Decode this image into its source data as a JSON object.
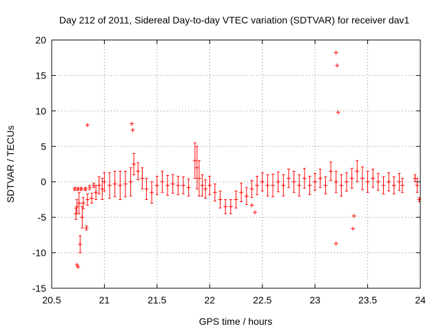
{
  "chart_data": {
    "type": "scatter",
    "title": "Day 212 of 2011, Sidereal Day-to-day VTEC variation (SDTVAR) for receiver dav1",
    "xlabel": "GPS time / hours",
    "ylabel": "SDTVAR / TECUs",
    "xlim": [
      20.5,
      24
    ],
    "ylim": [
      -15,
      20
    ],
    "xticks": [
      20.5,
      21,
      21.5,
      22,
      22.5,
      23,
      23.5,
      24
    ],
    "xtick_labels": [
      "20.5",
      "21",
      "21.5",
      "22",
      "22.5",
      "23",
      "23.5",
      "24"
    ],
    "yticks": [
      -15,
      -10,
      -5,
      0,
      5,
      10,
      15,
      20
    ],
    "ytick_labels": [
      "-15",
      "-10",
      "-5",
      "0",
      "5",
      "10",
      "15",
      "20"
    ],
    "grid": true,
    "marker_color": "#ff0000",
    "series": [
      {
        "name": "SDTVAR",
        "marker": "+",
        "style": "points with vertical error bars",
        "points": [
          {
            "x": 20.72,
            "y": -1.0,
            "err": 0.2
          },
          {
            "x": 20.73,
            "y": -4.5,
            "err": 0.8
          },
          {
            "x": 20.74,
            "y": -3.5,
            "err": 1.0
          },
          {
            "x": 20.75,
            "y": -1.0,
            "err": 0.2
          },
          {
            "x": 20.76,
            "y": -3.0,
            "err": 1.5
          },
          {
            "x": 20.77,
            "y": -8.8,
            "err": 1.2
          },
          {
            "x": 20.78,
            "y": -1.0,
            "err": 0.2
          },
          {
            "x": 20.79,
            "y": -5.0,
            "err": 1.5
          },
          {
            "x": 20.8,
            "y": -3.0,
            "err": 0.8
          },
          {
            "x": 20.82,
            "y": -1.0,
            "err": 0.2
          },
          {
            "x": 20.83,
            "y": -6.5,
            "err": 0.3
          },
          {
            "x": 20.84,
            "y": -2.5,
            "err": 0.8
          },
          {
            "x": 20.86,
            "y": -0.8,
            "err": 0.3
          },
          {
            "x": 20.88,
            "y": -2.3,
            "err": 0.7
          },
          {
            "x": 20.9,
            "y": -0.5,
            "err": 0.3
          },
          {
            "x": 20.92,
            "y": -1.5,
            "err": 1.0
          },
          {
            "x": 20.95,
            "y": -0.5,
            "err": 1.2
          },
          {
            "x": 20.98,
            "y": -1.0,
            "err": 1.5
          },
          {
            "x": 21.0,
            "y": 0.0,
            "err": 1.3
          },
          {
            "x": 21.05,
            "y": -0.5,
            "err": 1.8
          },
          {
            "x": 21.1,
            "y": -0.3,
            "err": 1.8
          },
          {
            "x": 21.15,
            "y": -0.5,
            "err": 2.0
          },
          {
            "x": 21.2,
            "y": -0.3,
            "err": 1.8
          },
          {
            "x": 21.25,
            "y": 0.0,
            "err": 2.0
          },
          {
            "x": 21.28,
            "y": 2.5,
            "err": 1.5
          },
          {
            "x": 21.32,
            "y": 1.5,
            "err": 1.2
          },
          {
            "x": 21.36,
            "y": 0.5,
            "err": 1.5
          },
          {
            "x": 21.4,
            "y": -1.0,
            "err": 1.5
          },
          {
            "x": 21.45,
            "y": -1.5,
            "err": 1.5
          },
          {
            "x": 21.5,
            "y": -0.5,
            "err": 1.3
          },
          {
            "x": 21.55,
            "y": 0.0,
            "err": 1.5
          },
          {
            "x": 21.6,
            "y": -0.5,
            "err": 1.4
          },
          {
            "x": 21.65,
            "y": -0.3,
            "err": 1.3
          },
          {
            "x": 21.7,
            "y": -0.5,
            "err": 1.3
          },
          {
            "x": 21.75,
            "y": -0.5,
            "err": 1.2
          },
          {
            "x": 21.8,
            "y": -0.8,
            "err": 1.2
          },
          {
            "x": 21.86,
            "y": 3.0,
            "err": 2.5
          },
          {
            "x": 21.88,
            "y": 2.0,
            "err": 3.0
          },
          {
            "x": 21.9,
            "y": 0.5,
            "err": 2.5
          },
          {
            "x": 21.93,
            "y": -0.5,
            "err": 1.5
          },
          {
            "x": 21.96,
            "y": -1.0,
            "err": 1.3
          },
          {
            "x": 22.0,
            "y": -0.5,
            "err": 1.3
          },
          {
            "x": 22.05,
            "y": -1.5,
            "err": 1.2
          },
          {
            "x": 22.1,
            "y": -2.5,
            "err": 1.2
          },
          {
            "x": 22.15,
            "y": -3.5,
            "err": 1.0
          },
          {
            "x": 22.2,
            "y": -3.5,
            "err": 1.0
          },
          {
            "x": 22.25,
            "y": -2.5,
            "err": 1.2
          },
          {
            "x": 22.3,
            "y": -1.5,
            "err": 1.3
          },
          {
            "x": 22.35,
            "y": -2.0,
            "err": 1.2
          },
          {
            "x": 22.4,
            "y": -1.0,
            "err": 1.2
          },
          {
            "x": 22.45,
            "y": -0.5,
            "err": 1.3
          },
          {
            "x": 22.5,
            "y": 0.0,
            "err": 1.3
          },
          {
            "x": 22.55,
            "y": -0.5,
            "err": 1.5
          },
          {
            "x": 22.6,
            "y": -0.5,
            "err": 1.6
          },
          {
            "x": 22.65,
            "y": 0.0,
            "err": 1.4
          },
          {
            "x": 22.7,
            "y": -0.5,
            "err": 1.5
          },
          {
            "x": 22.75,
            "y": 0.5,
            "err": 1.3
          },
          {
            "x": 22.8,
            "y": 0.0,
            "err": 1.5
          },
          {
            "x": 22.85,
            "y": -0.5,
            "err": 1.5
          },
          {
            "x": 22.9,
            "y": 0.5,
            "err": 1.4
          },
          {
            "x": 22.95,
            "y": -0.5,
            "err": 1.3
          },
          {
            "x": 23.0,
            "y": 0.0,
            "err": 1.2
          },
          {
            "x": 23.05,
            "y": 0.5,
            "err": 1.3
          },
          {
            "x": 23.1,
            "y": -0.5,
            "err": 1.2
          },
          {
            "x": 23.15,
            "y": 1.5,
            "err": 1.3
          },
          {
            "x": 23.2,
            "y": 0.0,
            "err": 1.5
          },
          {
            "x": 23.25,
            "y": -0.5,
            "err": 1.5
          },
          {
            "x": 23.3,
            "y": 0.0,
            "err": 1.3
          },
          {
            "x": 23.35,
            "y": 0.5,
            "err": 1.4
          },
          {
            "x": 23.4,
            "y": 1.5,
            "err": 1.5
          },
          {
            "x": 23.45,
            "y": 0.5,
            "err": 1.6
          },
          {
            "x": 23.5,
            "y": 0.0,
            "err": 1.5
          },
          {
            "x": 23.55,
            "y": 0.5,
            "err": 1.3
          },
          {
            "x": 23.6,
            "y": 0.0,
            "err": 1.2
          },
          {
            "x": 23.65,
            "y": -0.5,
            "err": 1.2
          },
          {
            "x": 23.7,
            "y": 0.0,
            "err": 1.3
          },
          {
            "x": 23.75,
            "y": -0.5,
            "err": 1.2
          },
          {
            "x": 23.8,
            "y": 0.0,
            "err": 1.2
          },
          {
            "x": 23.83,
            "y": -0.5,
            "err": 1.0
          },
          {
            "x": 23.95,
            "y": 0.5,
            "err": 0.5
          },
          {
            "x": 23.97,
            "y": -0.5,
            "err": 1.0
          },
          {
            "x": 23.99,
            "y": -2.5,
            "err": 0.3
          }
        ],
        "outliers": [
          {
            "x": 20.74,
            "y": -11.7
          },
          {
            "x": 20.75,
            "y": -12.0
          },
          {
            "x": 20.84,
            "y": 8.0
          },
          {
            "x": 21.26,
            "y": 8.2
          },
          {
            "x": 21.27,
            "y": 7.3
          },
          {
            "x": 22.4,
            "y": -3.3
          },
          {
            "x": 22.43,
            "y": -4.3
          },
          {
            "x": 23.2,
            "y": 18.2
          },
          {
            "x": 23.21,
            "y": 16.4
          },
          {
            "x": 23.22,
            "y": 9.8
          },
          {
            "x": 23.2,
            "y": -8.7
          },
          {
            "x": 23.37,
            "y": -4.8
          },
          {
            "x": 23.36,
            "y": -6.6
          }
        ]
      }
    ]
  }
}
